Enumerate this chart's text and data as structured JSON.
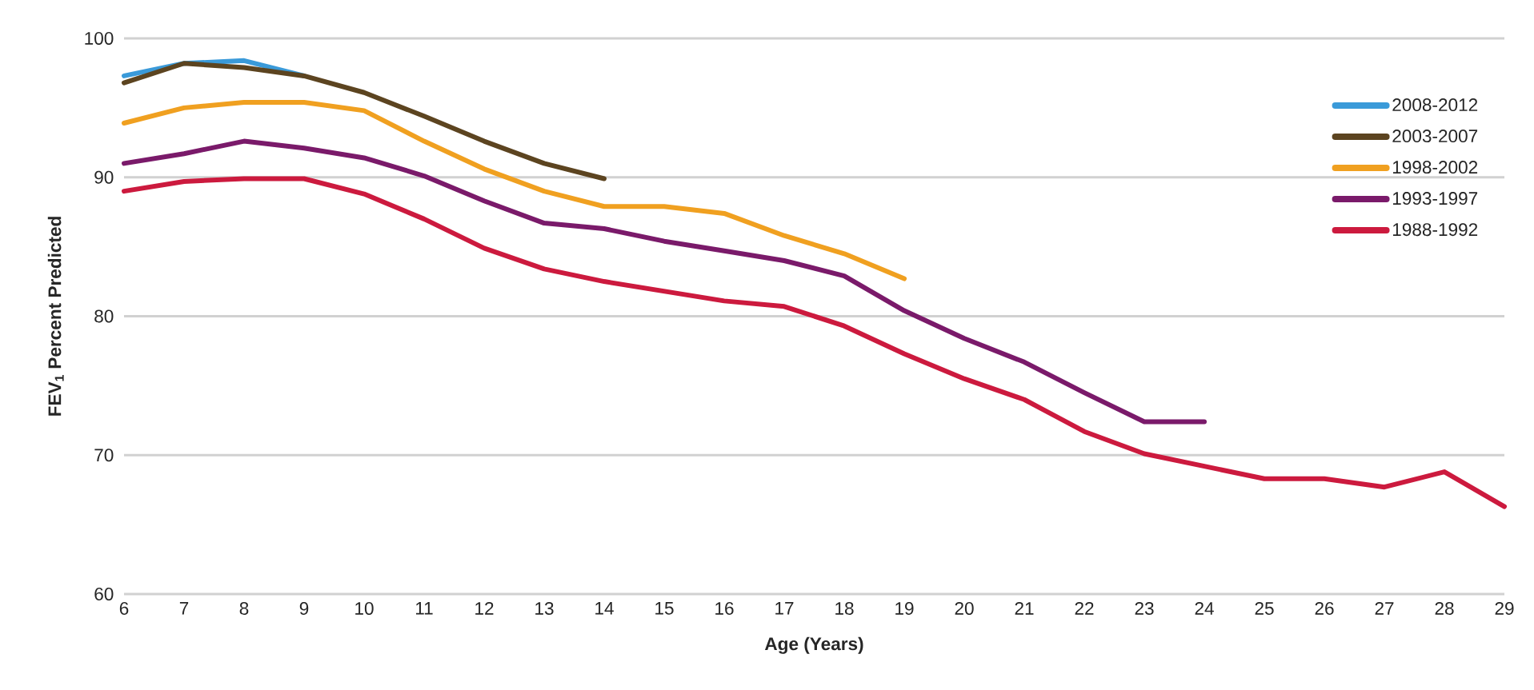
{
  "chart_data": {
    "type": "line",
    "xlabel": "Age (Years)",
    "ylabel": "FEV$_{1}$ Percent Predicted",
    "xlim": [
      6,
      29
    ],
    "xticks": [
      6,
      7,
      8,
      9,
      10,
      11,
      12,
      13,
      14,
      15,
      16,
      17,
      18,
      19,
      20,
      21,
      22,
      23,
      24,
      25,
      26,
      27,
      28,
      29
    ],
    "ylim": [
      60,
      100
    ],
    "yticks": [
      60,
      70,
      80,
      90,
      100
    ],
    "grid": "y",
    "legend": "top right",
    "series": [
      {
        "name": "2008-2012",
        "color": "#3a9ad9",
        "x": [
          6,
          7,
          8,
          9
        ],
        "values": [
          97.3,
          98.2,
          98.4,
          97.3
        ]
      },
      {
        "name": "2003-2007",
        "color": "#5c4420",
        "x": [
          6,
          7,
          8,
          9,
          10,
          11,
          12,
          13,
          14
        ],
        "values": [
          96.8,
          98.2,
          97.9,
          97.3,
          96.1,
          94.4,
          92.6,
          91.0,
          89.9
        ]
      },
      {
        "name": "1998-2002",
        "color": "#f0a020",
        "x": [
          6,
          7,
          8,
          9,
          10,
          11,
          12,
          13,
          14,
          15,
          16,
          17,
          18,
          19
        ],
        "values": [
          93.9,
          95.0,
          95.4,
          95.4,
          94.8,
          92.6,
          90.6,
          89.0,
          87.9,
          87.9,
          87.4,
          85.8,
          84.5,
          82.7
        ]
      },
      {
        "name": "1993-1997",
        "color": "#7a1a6a",
        "x": [
          6,
          7,
          8,
          9,
          10,
          11,
          12,
          13,
          14,
          15,
          16,
          17,
          18,
          19,
          20,
          21,
          22,
          23,
          24
        ],
        "values": [
          91.0,
          91.7,
          92.6,
          92.1,
          91.4,
          90.1,
          88.3,
          86.7,
          86.3,
          85.4,
          84.7,
          84.0,
          82.9,
          80.4,
          78.4,
          76.7,
          74.5,
          72.4,
          72.4
        ]
      },
      {
        "name": "1988-1992",
        "color": "#cc1a3e",
        "x": [
          6,
          7,
          8,
          9,
          10,
          11,
          12,
          13,
          14,
          15,
          16,
          17,
          18,
          19,
          20,
          21,
          22,
          23,
          24,
          25,
          26,
          27,
          28,
          29
        ],
        "values": [
          89.0,
          89.7,
          89.9,
          89.9,
          88.8,
          87.0,
          84.9,
          83.4,
          82.5,
          81.8,
          81.1,
          80.7,
          79.3,
          77.3,
          75.5,
          74.0,
          71.7,
          70.1,
          69.2,
          68.3,
          68.3,
          67.7,
          68.8,
          66.3
        ]
      }
    ]
  }
}
